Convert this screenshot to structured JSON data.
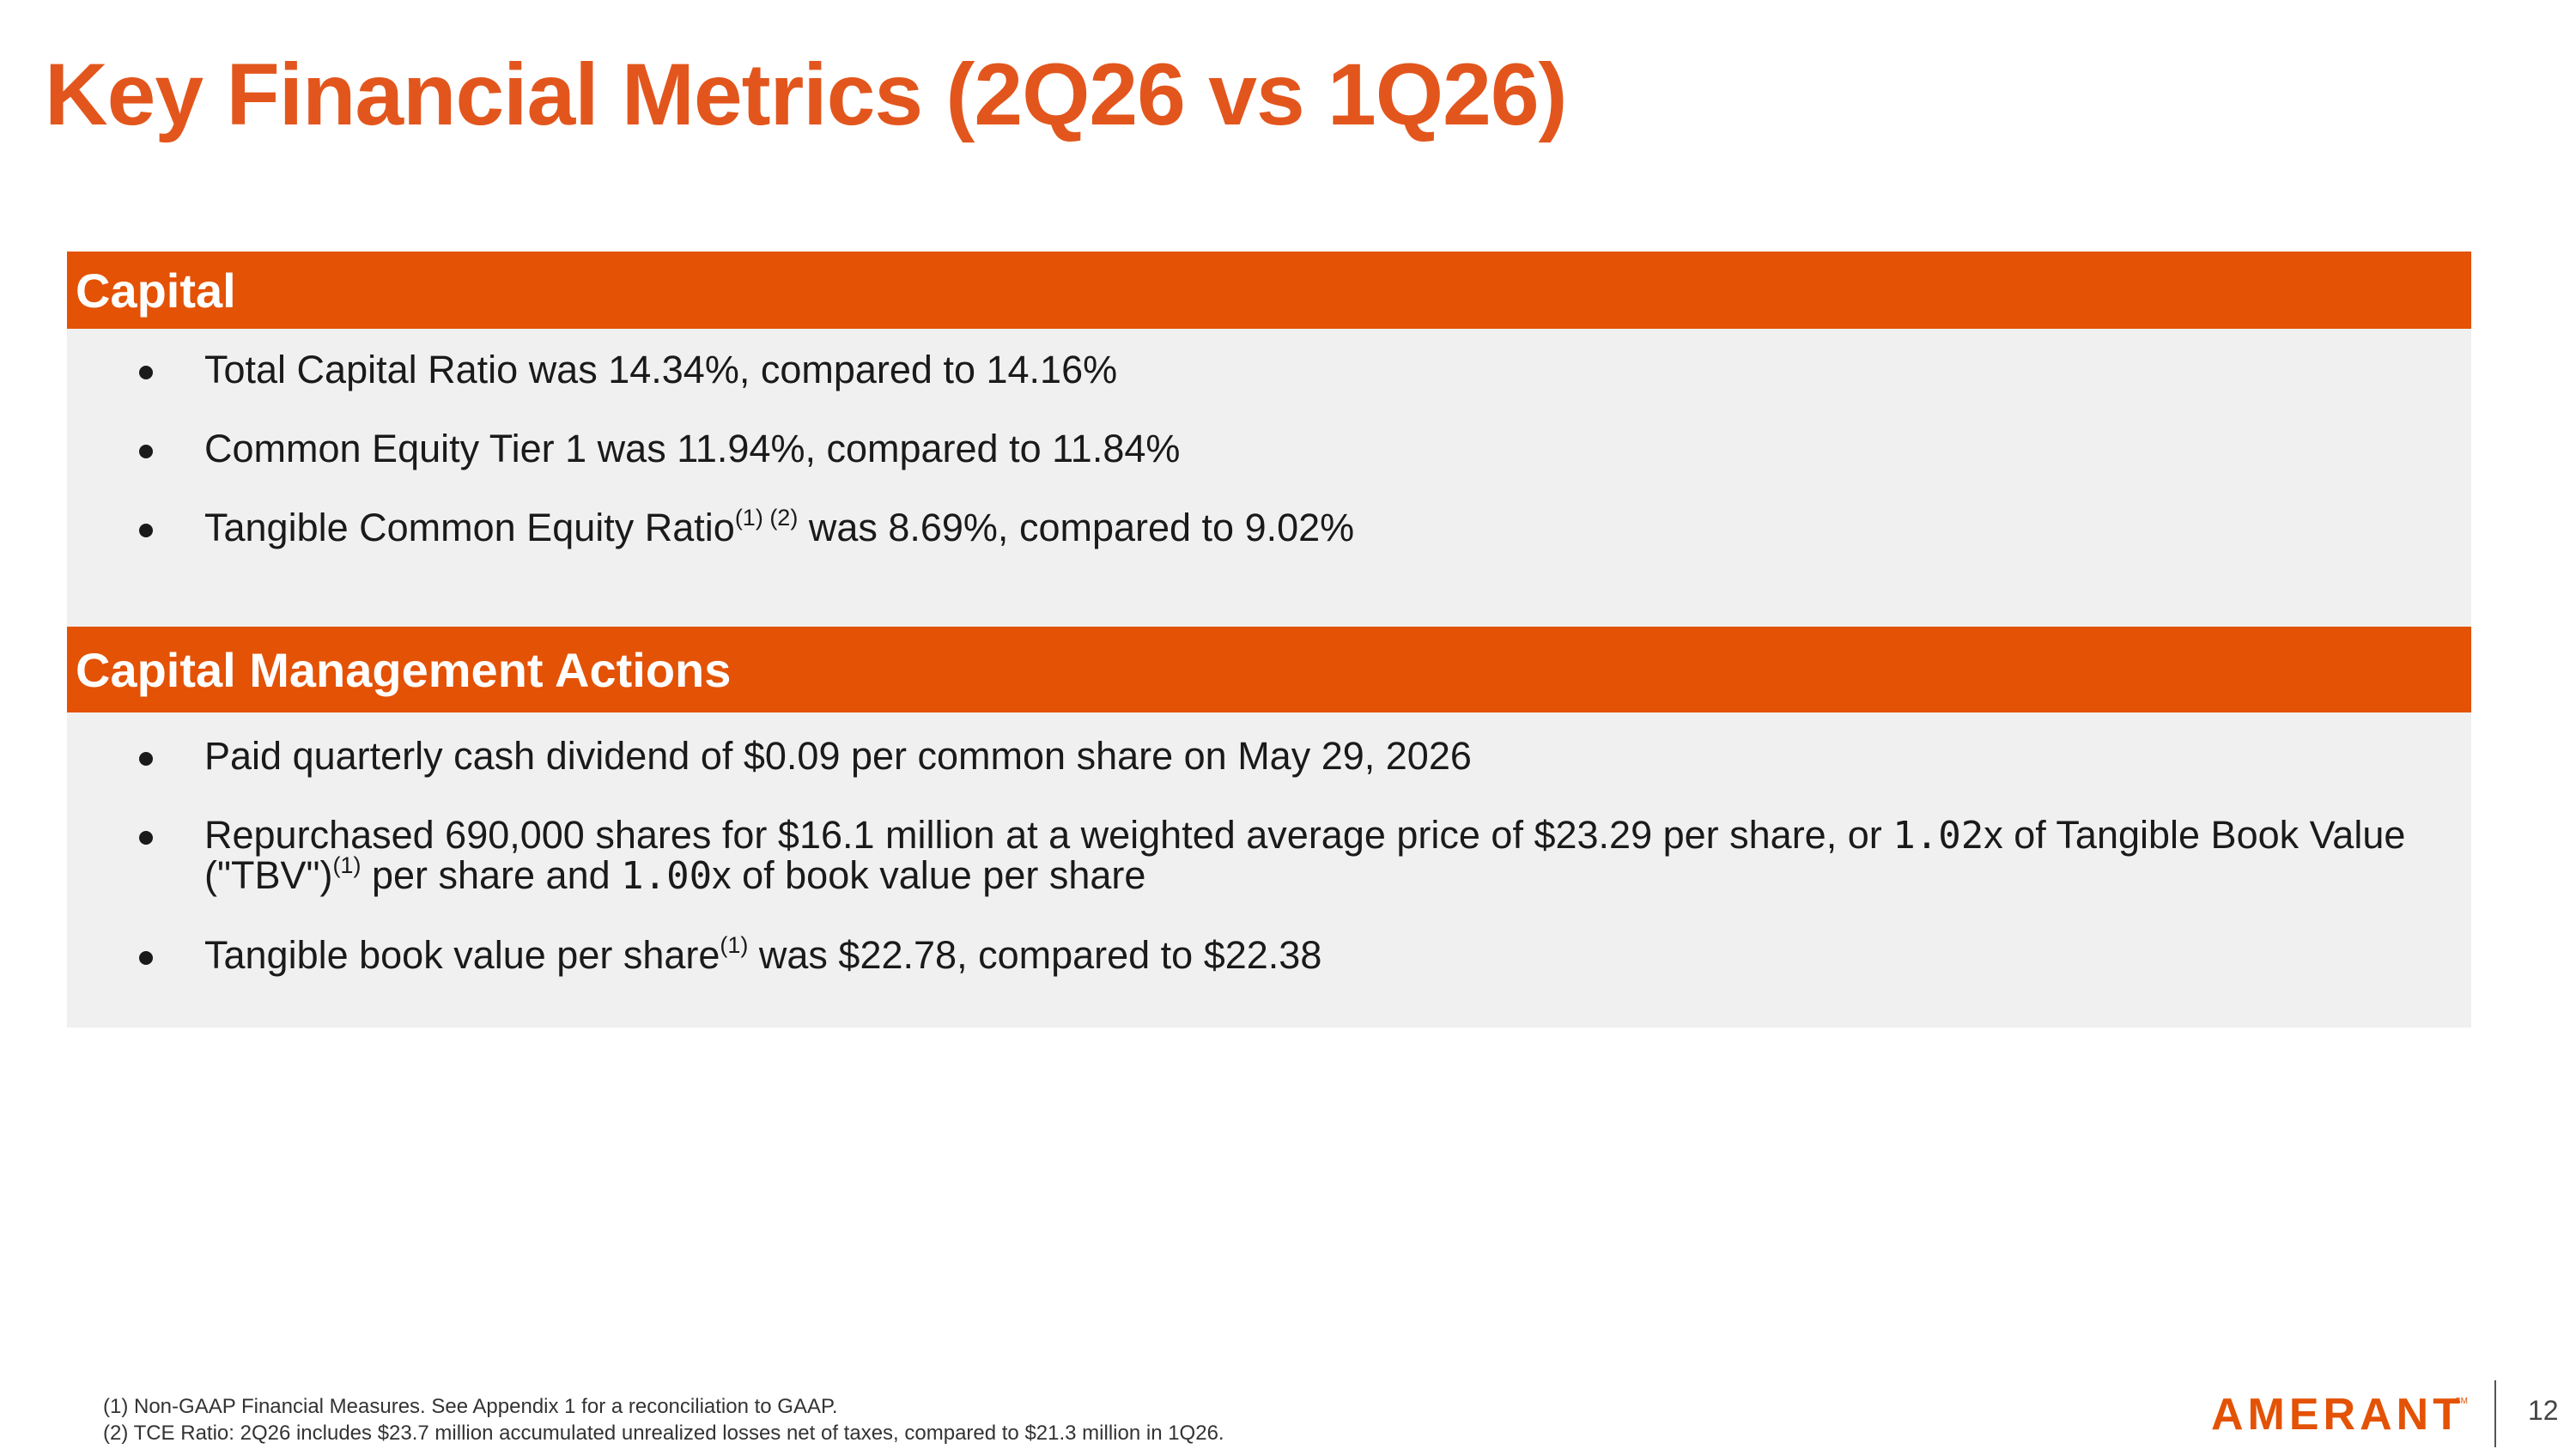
{
  "title": "Key Financial Metrics (2Q26 vs 1Q26)",
  "sections": [
    {
      "header": "Capital",
      "bullets": [
        {
          "text": "Total Capital Ratio was 14.34%, compared to 14.16%"
        },
        {
          "text": "Common Equity Tier 1 was 11.94%, compared to 11.84%"
        },
        {
          "text_before": "Tangible Common Equity Ratio",
          "sup": "(1) (2)",
          "text_after": " was 8.69%, compared to 9.02%"
        }
      ]
    },
    {
      "header": "Capital Management Actions",
      "bullets": [
        {
          "text": "Paid quarterly cash dividend of $0.09 per common share on May 29, 2026"
        },
        {
          "part1": "Repurchased 690,000 shares for $16.1 million at a weighted average price of $23.29 per share, or ",
          "mult1": "1.02",
          "part2": "x of Tangible Book Value (\"TBV\")",
          "sup": "(1)",
          "part3": " per share and ",
          "mult2": "1.00",
          "part4": "x of book value per share"
        },
        {
          "text_before": "Tangible book value per share",
          "sup": "(1)",
          "text_after": " was $22.78, compared to $22.38"
        }
      ]
    }
  ],
  "footnotes": [
    "(1) Non-GAAP Financial Measures. See Appendix 1 for a reconciliation to GAAP.",
    "(2) TCE Ratio: 2Q26 includes $23.7 million accumulated unrealized losses net of taxes, compared to $21.3 million in 1Q26."
  ],
  "logo": {
    "text": "AMERANT",
    "mark": "SM",
    "color": "#E35205"
  },
  "page_number": "12"
}
